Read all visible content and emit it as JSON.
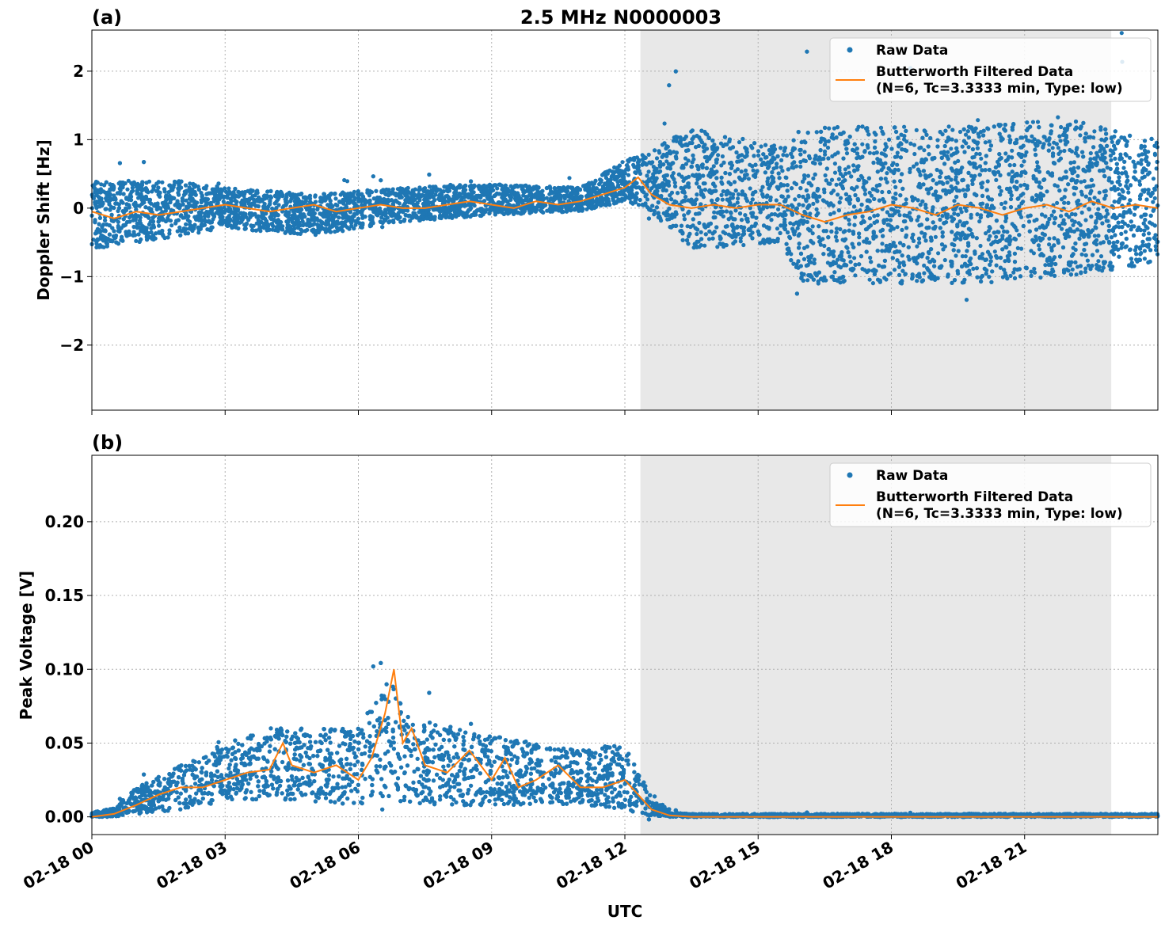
{
  "figure": {
    "title": "2.5 MHz N0000003",
    "xlabel": "UTC",
    "legend_raw": "Raw Data",
    "legend_filt_line1": "Butterworth Filtered Data",
    "legend_filt_line2": "(N=6, Tc=3.3333 min, Type: low)"
  },
  "colors": {
    "raw": "#1f77b4",
    "filtered": "#ff7f0e",
    "shade": "#e8e8e8"
  },
  "chart_data": [
    {
      "type": "scatter",
      "panel": "(a)",
      "title": "2.5 MHz N0000003",
      "ylabel": "Doppler Shift [Hz]",
      "xlabel": "",
      "xlim_hours": [
        0,
        24
      ],
      "ylim": [
        -2.95,
        2.6
      ],
      "yticks": [
        2,
        1,
        0,
        -1,
        -2
      ],
      "ytick_labels": [
        "2",
        "1",
        "0",
        "−1",
        "−2"
      ],
      "xticks_hours": [
        0,
        3,
        6,
        9,
        12,
        15,
        18,
        21
      ],
      "shaded_region_hours": [
        12.35,
        22.95
      ],
      "grid": true,
      "legend_position": "top-right",
      "series": [
        {
          "name": "Raw Data",
          "style": "points",
          "envelope_hours": [
            0,
            2,
            3,
            5,
            7,
            9,
            11,
            12,
            12.5,
            13.5,
            15.5,
            16,
            18,
            20,
            22,
            24
          ],
          "envelope_low": [
            -0.6,
            -0.4,
            -0.3,
            -0.4,
            -0.2,
            -0.1,
            -0.05,
            0.1,
            0.0,
            -0.6,
            -0.5,
            -1.1,
            -1.1,
            -1.1,
            -1.0,
            -0.8
          ],
          "envelope_high": [
            0.4,
            0.4,
            0.3,
            0.2,
            0.3,
            0.35,
            0.3,
            0.7,
            0.8,
            1.2,
            0.9,
            1.2,
            1.2,
            1.2,
            1.3,
            1.0
          ]
        },
        {
          "name": "Butterworth Filtered Data (N=6, Tc=3.3333 min, Type: low)",
          "style": "line",
          "x_hours": [
            0,
            0.5,
            1,
            1.5,
            2,
            2.5,
            3,
            3.5,
            4,
            4.5,
            5,
            5.5,
            6,
            6.5,
            7,
            7.5,
            8,
            8.5,
            9,
            9.5,
            10,
            10.5,
            11,
            11.5,
            12,
            12.3,
            12.6,
            13,
            13.5,
            14,
            14.5,
            15,
            15.5,
            16,
            16.5,
            17,
            17.5,
            18,
            18.5,
            19,
            19.5,
            20,
            20.5,
            21,
            21.5,
            22,
            22.5,
            23,
            23.5,
            24
          ],
          "y": [
            -0.05,
            -0.15,
            -0.05,
            -0.1,
            -0.05,
            0.0,
            0.05,
            0.0,
            -0.05,
            0.0,
            0.05,
            -0.05,
            0.0,
            0.05,
            0.0,
            0.0,
            0.05,
            0.1,
            0.05,
            0.0,
            0.1,
            0.05,
            0.1,
            0.2,
            0.3,
            0.45,
            0.2,
            0.05,
            0.0,
            0.05,
            0.0,
            0.05,
            0.05,
            -0.1,
            -0.2,
            -0.1,
            -0.05,
            0.05,
            0.0,
            -0.1,
            0.05,
            0.0,
            -0.1,
            0.0,
            0.05,
            -0.05,
            0.1,
            0.0,
            0.05,
            0.0
          ]
        }
      ]
    },
    {
      "type": "scatter",
      "panel": "(b)",
      "title": "",
      "ylabel": "Peak Voltage [V]",
      "xlabel": "UTC",
      "xlim_hours": [
        0,
        24
      ],
      "ylim": [
        -0.012,
        0.245
      ],
      "yticks": [
        0.2,
        0.15,
        0.1,
        0.05,
        0.0
      ],
      "ytick_labels": [
        "0.20",
        "0.15",
        "0.10",
        "0.05",
        "0.00"
      ],
      "xticks_hours": [
        0,
        3,
        6,
        9,
        12,
        15,
        18,
        21
      ],
      "xtick_labels": [
        "02-18 00",
        "02-18 03",
        "02-18 06",
        "02-18 09",
        "02-18 12",
        "02-18 15",
        "02-18 18",
        "02-18 21"
      ],
      "shaded_region_hours": [
        12.35,
        22.95
      ],
      "grid": true,
      "legend_position": "top-right",
      "series": [
        {
          "name": "Raw Data",
          "style": "points",
          "envelope_hours": [
            0,
            0.5,
            1,
            2,
            3,
            4,
            5,
            6,
            6.8,
            7,
            8,
            9,
            10,
            11,
            12,
            12.5,
            13,
            13.5,
            24
          ],
          "envelope_low": [
            0.0,
            0.0,
            0.002,
            0.005,
            0.01,
            0.012,
            0.01,
            0.008,
            0.01,
            0.01,
            0.008,
            0.008,
            0.008,
            0.008,
            0.005,
            0.001,
            0.0,
            0.0,
            0.0
          ],
          "envelope_high": [
            0.003,
            0.006,
            0.02,
            0.035,
            0.05,
            0.06,
            0.06,
            0.06,
            0.1,
            0.07,
            0.06,
            0.055,
            0.05,
            0.045,
            0.05,
            0.02,
            0.003,
            0.002,
            0.002
          ]
        },
        {
          "name": "Butterworth Filtered Data (N=6, Tc=3.3333 min, Type: low)",
          "style": "line",
          "x_hours": [
            0,
            0.5,
            1,
            1.5,
            2,
            2.5,
            3,
            3.5,
            4,
            4.3,
            4.5,
            5,
            5.5,
            6,
            6.3,
            6.6,
            6.8,
            7,
            7.2,
            7.5,
            8,
            8.5,
            9,
            9.3,
            9.6,
            10,
            10.5,
            11,
            11.5,
            12,
            12.3,
            12.6,
            13,
            13.5,
            24
          ],
          "y": [
            0.0,
            0.002,
            0.008,
            0.015,
            0.02,
            0.02,
            0.025,
            0.03,
            0.032,
            0.05,
            0.035,
            0.03,
            0.035,
            0.025,
            0.04,
            0.07,
            0.1,
            0.05,
            0.06,
            0.035,
            0.03,
            0.045,
            0.025,
            0.04,
            0.02,
            0.025,
            0.035,
            0.02,
            0.02,
            0.025,
            0.015,
            0.005,
            0.001,
            0.0,
            0.0
          ]
        }
      ]
    }
  ]
}
